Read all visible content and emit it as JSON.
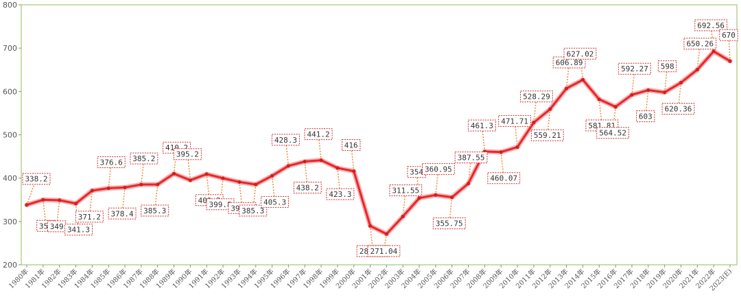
{
  "chart_data": {
    "type": "line",
    "categories": [
      "1980年",
      "1981年",
      "1982年",
      "1983年",
      "1984年",
      "1985年",
      "1986年",
      "1987年",
      "1988年",
      "1989年",
      "1990年",
      "1991年",
      "1992年",
      "1993年",
      "1994年",
      "1995年",
      "1996年",
      "1997年",
      "1998年",
      "1999年",
      "2000年",
      "2001年",
      "2002年",
      "2003年",
      "2004年",
      "2005年",
      "2006年",
      "2007年",
      "2008年",
      "2009年",
      "2010年",
      "2011年",
      "2012年",
      "2013年",
      "2014年",
      "2015年",
      "2016年",
      "2017年",
      "2018年",
      "2019年",
      "2020年",
      "2021年",
      "2022年",
      "2023(E)"
    ],
    "values": [
      338.2,
      350,
      349,
      341.3,
      371.2,
      376.6,
      378.4,
      385.2,
      385.3,
      410.2,
      395.2,
      409.3,
      399.8,
      391.1,
      385.3,
      405.3,
      428.3,
      438.2,
      441.2,
      423.3,
      416,
      289.79,
      271.04,
      311.55,
      354,
      360.95,
      355.75,
      387.55,
      461.3,
      460.07,
      471.71,
      528.29,
      559.21,
      606.89,
      627.02,
      581.81,
      564.52,
      592.27,
      603,
      598,
      620.36,
      650.26,
      692.56,
      670
    ],
    "value_labels": [
      "338.2",
      "350",
      "349",
      "341.3",
      "371.2",
      "376.6",
      "378.4",
      "385.2",
      "385.3",
      "410.2",
      "395.2",
      "409.3",
      "399.8",
      "391.1",
      "385.3",
      "405.3",
      "428.3",
      "438.2",
      "441.2",
      "423.3",
      "416",
      "289.79",
      "271.04",
      "311.55",
      "354",
      "360.95",
      "355.75",
      "387.55",
      "461.3",
      "460.07",
      "471.71",
      "528.29",
      "559.21",
      "606.89",
      "627.02",
      "581.81",
      "564.52",
      "592.27",
      "603",
      "598",
      "620.36",
      "650.26",
      "692.56",
      "670"
    ],
    "label_placement": [
      "above",
      "below",
      "below",
      "below",
      "below",
      "above",
      "below",
      "above",
      "below",
      "above",
      "above",
      "below",
      "below",
      "below",
      "below",
      "below",
      "above",
      "below",
      "above",
      "below",
      "above",
      "below",
      "below",
      "above",
      "above",
      "above",
      "below",
      "above",
      "above",
      "below",
      "above",
      "above",
      "below",
      "above",
      "above",
      "below",
      "below",
      "above",
      "below",
      "above",
      "below",
      "above",
      "above",
      "above"
    ],
    "y_ticks": [
      "200",
      "300",
      "400",
      "500",
      "600",
      "700",
      "800"
    ],
    "ylim": [
      200,
      800
    ],
    "title": "",
    "xlabel": "",
    "ylabel": "",
    "grid": false,
    "legend": "none",
    "colors": {
      "line": "#e8262b",
      "line_glow": "#f6b1b0",
      "marker": "#d41e1e",
      "leader": "#f08a3c",
      "label_border": "#cc2a2a",
      "frame": "#8dbf5a"
    }
  }
}
